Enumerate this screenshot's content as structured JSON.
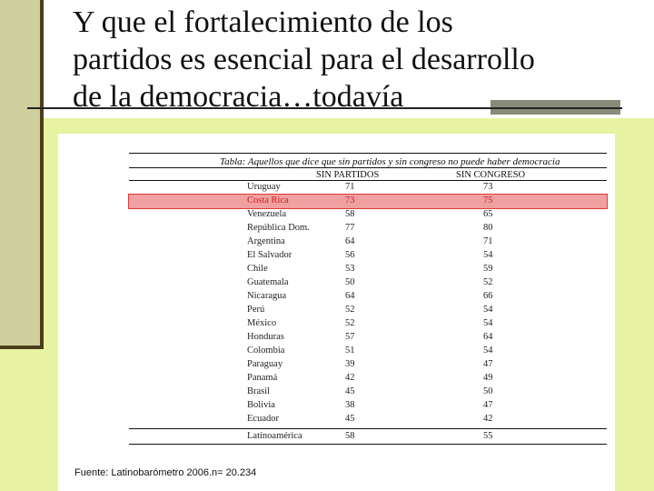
{
  "slide": {
    "title_lines": [
      "Y que el fortalecimiento de los",
      "partidos es esencial para el desarrollo",
      "de la democracia…todavía"
    ]
  },
  "table": {
    "title": "Tabla:   Aquellos que dice que sin partidos y sin congreso no puede haber democracia",
    "columns": [
      "SIN  PARTIDOS",
      "SIN  CONGRESO"
    ],
    "rows": [
      {
        "country": "Uruguay",
        "sin_partidos": "71",
        "sin_congreso": "73"
      },
      {
        "country": "Costa Rica",
        "sin_partidos": "73",
        "sin_congreso": "75",
        "highlighted": true
      },
      {
        "country": "Venezuela",
        "sin_partidos": "58",
        "sin_congreso": "65"
      },
      {
        "country": "República Dom.",
        "sin_partidos": "77",
        "sin_congreso": "80"
      },
      {
        "country": "Argentina",
        "sin_partidos": "64",
        "sin_congreso": "71"
      },
      {
        "country": "El Salvador",
        "sin_partidos": "56",
        "sin_congreso": "54"
      },
      {
        "country": "Chile",
        "sin_partidos": "53",
        "sin_congreso": "59"
      },
      {
        "country": "Guatemala",
        "sin_partidos": "50",
        "sin_congreso": "52"
      },
      {
        "country": "Nicaragua",
        "sin_partidos": "64",
        "sin_congreso": "66"
      },
      {
        "country": "Perú",
        "sin_partidos": "52",
        "sin_congreso": "54"
      },
      {
        "country": "México",
        "sin_partidos": "52",
        "sin_congreso": "54"
      },
      {
        "country": "Honduras",
        "sin_partidos": "57",
        "sin_congreso": "64"
      },
      {
        "country": "Colombia",
        "sin_partidos": "51",
        "sin_congreso": "54"
      },
      {
        "country": "Paraguay",
        "sin_partidos": "39",
        "sin_congreso": "47"
      },
      {
        "country": "Panamá",
        "sin_partidos": "42",
        "sin_congreso": "49"
      },
      {
        "country": "Brasil",
        "sin_partidos": "45",
        "sin_congreso": "50"
      },
      {
        "country": "Bolivia",
        "sin_partidos": "38",
        "sin_congreso": "47"
      },
      {
        "country": "Ecuador",
        "sin_partidos": "45",
        "sin_congreso": "42"
      }
    ],
    "total": {
      "country": "Latinoamérica",
      "sin_partidos": "58",
      "sin_congreso": "55"
    },
    "highlight_color": "#f0a0a0"
  },
  "source": "Fuente: Latinobarómetro 2006.n= 20.234"
}
